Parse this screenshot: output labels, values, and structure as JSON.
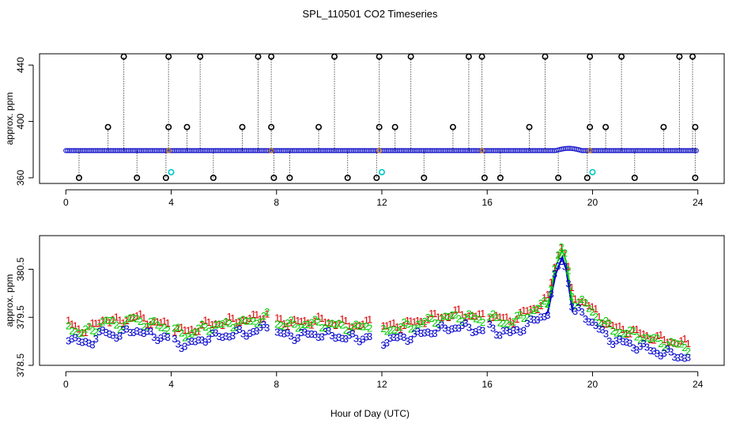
{
  "chart_data": {
    "title": "SPL_110501  CO2 Timeseries",
    "xlabel": "Hour of Day (UTC)",
    "panels": [
      {
        "name": "top",
        "type": "scatter",
        "ylabel": "approx. ppm",
        "xlim": [
          -1,
          25
        ],
        "ylim": [
          356,
          448
        ],
        "xticks": [
          0,
          4,
          8,
          12,
          16,
          20,
          24
        ],
        "yticks": [
          360,
          400,
          440
        ],
        "baseline": 379.3,
        "baseline_color": "#2222cc",
        "high_marker_color": "#000000",
        "cyan_color": "#00c8c8",
        "spikes_high": [
          2.2,
          3.9,
          5.1,
          7.3,
          7.8,
          10.2,
          11.9,
          13.1,
          15.3,
          15.8,
          18.2,
          19.9,
          21.1,
          23.3,
          23.8
        ],
        "high_value": 446,
        "spikes_mid": [
          1.6,
          3.9,
          4.6,
          6.7,
          7.8,
          9.6,
          11.9,
          12.5,
          14.7,
          17.6,
          19.9,
          20.5,
          22.7,
          23.9
        ],
        "mid_value": 396,
        "spikes_low": [
          0.5,
          2.7,
          3.8,
          5.6,
          7.9,
          8.5,
          10.7,
          11.8,
          13.6,
          15.9,
          16.5,
          18.7,
          19.8,
          21.6,
          23.9
        ],
        "low_value": 360,
        "cyan_points": [
          [
            4.0,
            364
          ],
          [
            12.0,
            364
          ],
          [
            20.0,
            364
          ]
        ]
      },
      {
        "name": "bottom",
        "type": "scatter",
        "ylabel": "approx. ppm",
        "xlim": [
          -1,
          25
        ],
        "ylim": [
          378.5,
          381.2
        ],
        "xticks": [
          0,
          4,
          8,
          12,
          16,
          20,
          24
        ],
        "yticks": [
          378.5,
          379.5,
          380.5
        ],
        "series": [
          {
            "name": "1",
            "label": "1",
            "color": "#dd0000",
            "offset": 0.28
          },
          {
            "name": "2",
            "label": "2",
            "color": "#00cc00",
            "offset": 0.22
          },
          {
            "name": "3",
            "label": "3",
            "color": "#0000cc",
            "offset": 0.0
          }
        ],
        "anchors": [
          [
            0.1,
            379.1
          ],
          [
            0.5,
            378.95
          ],
          [
            1.0,
            379.0
          ],
          [
            1.5,
            379.2
          ],
          [
            2.0,
            379.1
          ],
          [
            2.6,
            379.25
          ],
          [
            3.0,
            379.15
          ],
          [
            3.5,
            379.1
          ],
          [
            3.9,
            379.05
          ],
          [
            4.1,
            379.0
          ],
          [
            4.6,
            378.9
          ],
          [
            5.2,
            379.05
          ],
          [
            5.8,
            379.1
          ],
          [
            6.5,
            379.15
          ],
          [
            7.2,
            379.2
          ],
          [
            7.7,
            379.3
          ],
          [
            8.0,
            379.15
          ],
          [
            8.7,
            379.1
          ],
          [
            9.5,
            379.15
          ],
          [
            10.3,
            379.1
          ],
          [
            11.0,
            379.05
          ],
          [
            11.6,
            379.1
          ],
          [
            12.0,
            379.0
          ],
          [
            12.6,
            379.05
          ],
          [
            13.2,
            379.1
          ],
          [
            13.8,
            379.2
          ],
          [
            14.4,
            379.25
          ],
          [
            14.9,
            379.3
          ],
          [
            15.5,
            379.25
          ],
          [
            15.9,
            379.2
          ],
          [
            16.0,
            379.3
          ],
          [
            16.4,
            379.2
          ],
          [
            16.9,
            379.15
          ],
          [
            17.4,
            379.3
          ],
          [
            17.9,
            379.45
          ],
          [
            18.3,
            379.6
          ],
          [
            18.6,
            380.4
          ],
          [
            18.85,
            380.75
          ],
          [
            19.0,
            380.5
          ],
          [
            19.25,
            379.6
          ],
          [
            19.5,
            379.6
          ],
          [
            19.8,
            379.5
          ],
          [
            20.3,
            379.2
          ],
          [
            20.8,
            379.0
          ],
          [
            21.3,
            378.95
          ],
          [
            22.0,
            378.85
          ],
          [
            22.6,
            378.75
          ],
          [
            23.2,
            378.7
          ],
          [
            23.6,
            378.65
          ]
        ],
        "gaps": [
          [
            3.9,
            4.1
          ],
          [
            7.7,
            8.0
          ],
          [
            11.6,
            12.0
          ],
          [
            15.9,
            16.0
          ]
        ]
      }
    ]
  }
}
